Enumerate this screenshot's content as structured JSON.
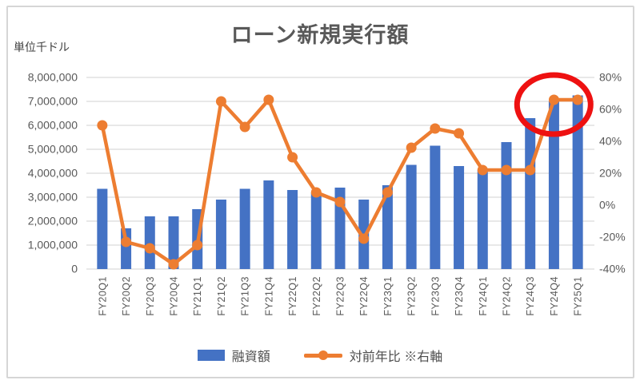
{
  "title": "ローン新規実行額",
  "unit_label": "単位千ドル",
  "colors": {
    "bar": "#4472C4",
    "line": "#ED7D31",
    "annotation_red": "#EE1111",
    "grid": "#D9D9D9",
    "text": "#595959"
  },
  "legend": {
    "bar_label": "融資額",
    "line_label": "対前年比 ※右軸"
  },
  "annotation": {
    "shape": "ellipse",
    "color": "#EE1111",
    "circled_categories": [
      "FY24Q4",
      "FY25Q1"
    ]
  },
  "chart_data": {
    "type": "bar+line-combo",
    "title": "ローン新規実行額",
    "categories": [
      "FY20Q1",
      "FY20Q2",
      "FY20Q3",
      "FY20Q4",
      "FY21Q1",
      "FY21Q2",
      "FY21Q3",
      "FY21Q4",
      "FY22Q1",
      "FY22Q2",
      "FY22Q3",
      "FY22Q4",
      "FY23Q1",
      "FY23Q2",
      "FY23Q3",
      "FY23Q4",
      "FY24Q1",
      "FY24Q2",
      "FY24Q3",
      "FY24Q4",
      "FY25Q1"
    ],
    "series": [
      {
        "name": "融資額",
        "type": "bar",
        "axis": "left",
        "color": "#4472C4",
        "values": [
          3350000,
          1700000,
          2200000,
          2200000,
          2500000,
          2900000,
          3350000,
          3700000,
          3300000,
          3200000,
          3400000,
          2900000,
          3500000,
          4350000,
          5150000,
          4300000,
          4150000,
          5300000,
          6300000,
          7000000,
          7250000
        ]
      },
      {
        "name": "対前年比 ※右軸",
        "type": "line",
        "axis": "right",
        "color": "#ED7D31",
        "values_pct": [
          50,
          -23,
          -27,
          -37,
          -25,
          65,
          49,
          66,
          30,
          8,
          2,
          -21,
          8,
          36,
          48,
          45,
          22,
          22,
          22,
          66,
          66
        ]
      }
    ],
    "left_axis": {
      "label": "単位千ドル",
      "min": 0,
      "max": 8000000,
      "step": 1000000,
      "ticks": [
        "8,000,000",
        "7,000,000",
        "6,000,000",
        "5,000,000",
        "4,000,000",
        "3,000,000",
        "2,000,000",
        "1,000,000",
        "0"
      ]
    },
    "right_axis": {
      "min": -40,
      "max": 80,
      "step": 20,
      "ticks": [
        "80%",
        "60%",
        "40%",
        "20%",
        "0%",
        "-20%",
        "-40%"
      ]
    },
    "grid": true,
    "legend_position": "bottom"
  }
}
